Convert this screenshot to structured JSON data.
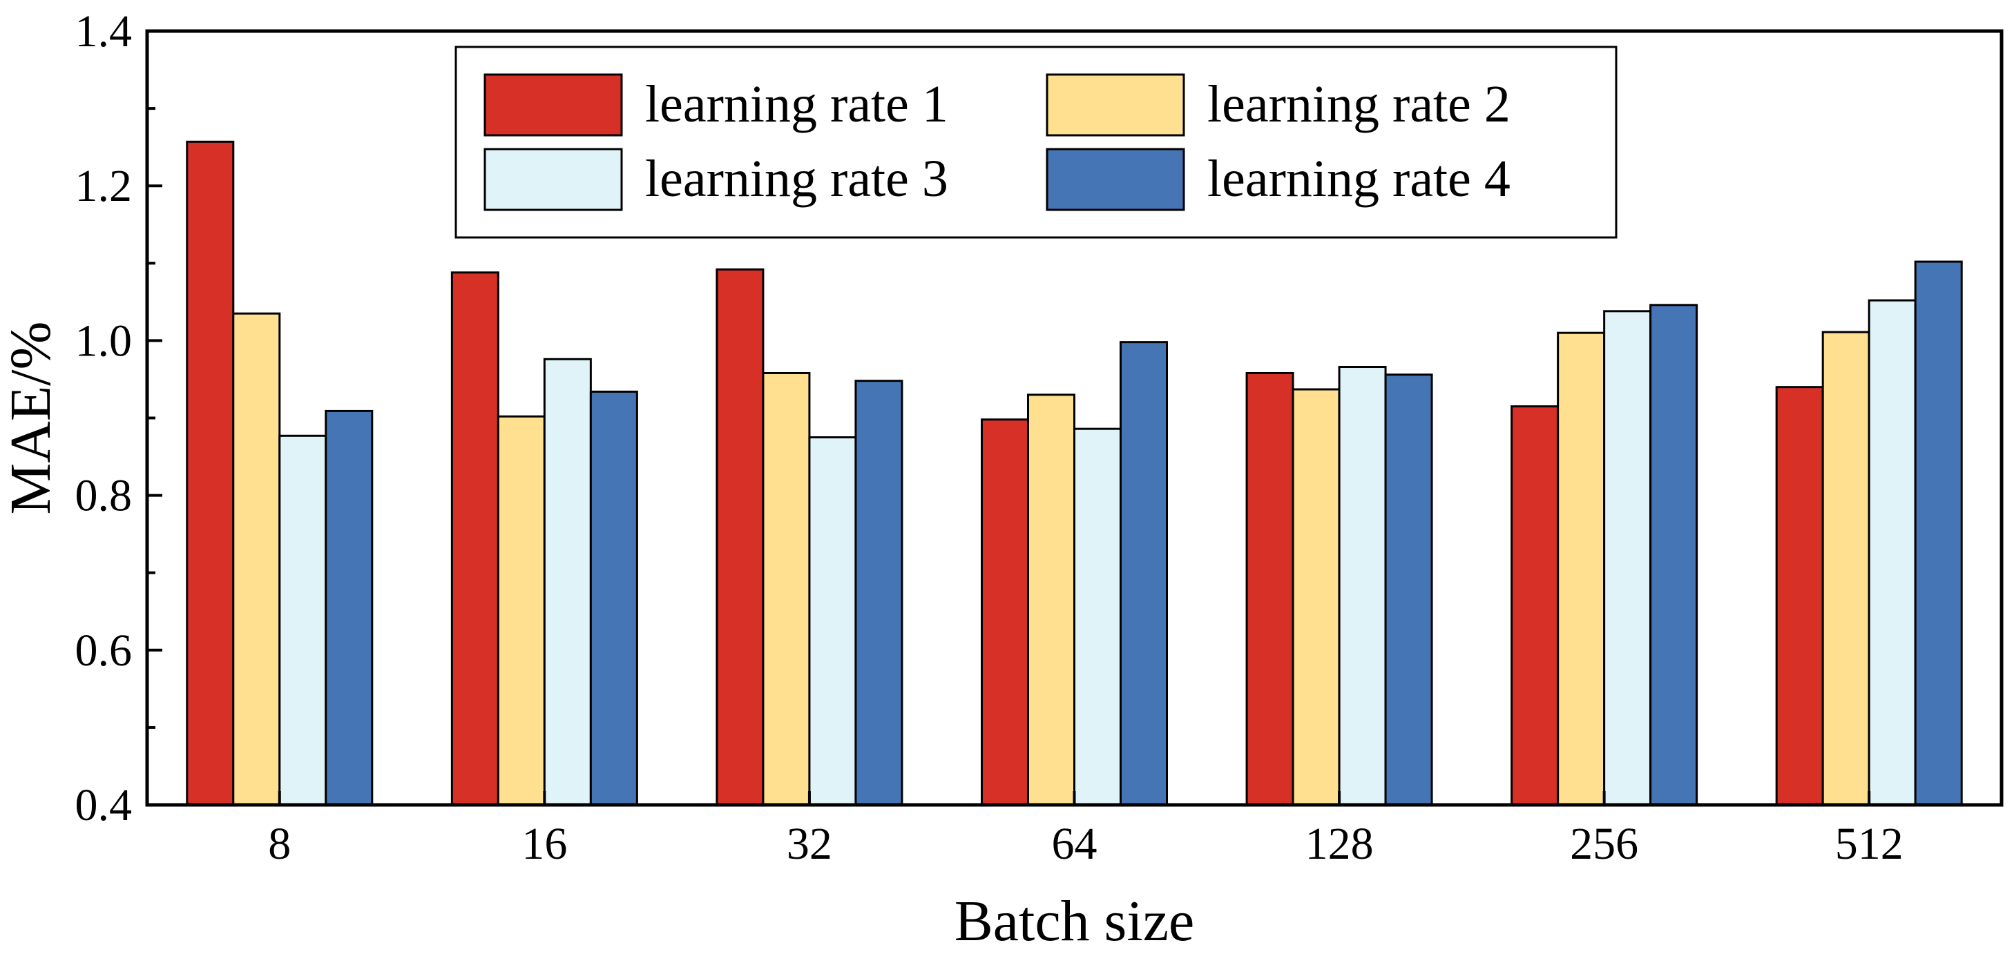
{
  "chart_data": {
    "type": "bar",
    "title": "",
    "xlabel": "Batch size",
    "ylabel": "MAE/%",
    "ylim": [
      0.4,
      1.4
    ],
    "yticks": [
      "0.4",
      "0.6",
      "0.8",
      "1.0",
      "1.2",
      "1.4"
    ],
    "categories": [
      "8",
      "16",
      "32",
      "64",
      "128",
      "256",
      "512"
    ],
    "series": [
      {
        "name": "learning rate 1",
        "color": "#d73027",
        "values": [
          1.257,
          1.088,
          1.092,
          0.898,
          0.958,
          0.915,
          0.94
        ]
      },
      {
        "name": "learning rate 2",
        "color": "#fee090",
        "values": [
          1.035,
          0.902,
          0.958,
          0.93,
          0.937,
          1.01,
          1.011
        ]
      },
      {
        "name": "learning rate 3",
        "color": "#e0f3f8",
        "values": [
          0.877,
          0.976,
          0.875,
          0.886,
          0.966,
          1.038,
          1.052
        ]
      },
      {
        "name": "learning rate 4",
        "color": "#4575b4",
        "values": [
          0.909,
          0.934,
          0.948,
          0.998,
          0.956,
          1.046,
          1.102
        ]
      }
    ],
    "legend_position": "top-center",
    "grid": false
  }
}
